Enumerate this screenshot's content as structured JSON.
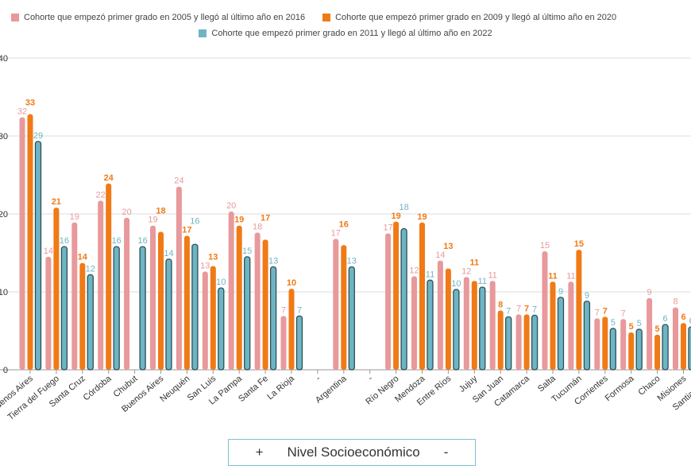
{
  "chart_data": {
    "type": "bar",
    "ylim": [
      0,
      40
    ],
    "yticks": [
      0,
      10,
      20,
      30,
      40
    ],
    "grid": true,
    "legend_position": "top",
    "categories": [
      "Buenos Aires",
      "Tierra del Fuego",
      "Santa Cruz",
      "Córdoba",
      "Chubut",
      "Buenos Aires",
      "Neuquén",
      "San Luis",
      "La Pampa",
      "Santa Fe",
      "La Rioja",
      "-",
      "Argentina",
      "-",
      "Río Negro",
      "Mendoza",
      "Entre Ríos",
      "Jujuy",
      "San Juan",
      "Catamarca",
      "Salta",
      "Tucumán",
      "Corrientes",
      "Formosa",
      "Chaco",
      "Misiones",
      "Santiago del"
    ],
    "series": [
      {
        "name": "Cohorte que empezó primer grado en 2005 y llegó al último año en 2016",
        "color": "#e8999b",
        "values": [
          32.4,
          14.5,
          18.9,
          21.7,
          19.5,
          18.5,
          23.5,
          12.6,
          20.3,
          17.6,
          6.9,
          null,
          16.8,
          null,
          17.5,
          12.0,
          14.0,
          11.9,
          11.4,
          7.1,
          15.2,
          11.3,
          6.6,
          6.5,
          9.2,
          8.0,
          null
        ],
        "labels": [
          "32",
          "14",
          "19",
          "22",
          "20",
          "19",
          "24",
          "13",
          "20",
          "18",
          "7",
          "",
          "17",
          "",
          "17",
          "12",
          "14",
          "12",
          "11",
          "7",
          "15",
          "11",
          "7",
          "7",
          "9",
          "8",
          ""
        ]
      },
      {
        "name": "Cohorte que empezó primer grado en 2009 y llegó al último año en 2020",
        "color": "#f07a16",
        "values": [
          32.8,
          20.8,
          13.7,
          23.9,
          null,
          17.7,
          17.2,
          13.3,
          18.5,
          16.7,
          10.4,
          null,
          16.0,
          null,
          19.0,
          18.9,
          13.0,
          11.4,
          7.6,
          7.1,
          11.3,
          15.4,
          6.8,
          4.8,
          4.5,
          6.0,
          null
        ],
        "labels": [
          "33",
          "21",
          "14",
          "24",
          "",
          "18",
          "17",
          "13",
          "19",
          "17",
          "10",
          "",
          "16",
          "",
          "19",
          "19",
          "13",
          "11",
          "8",
          "7",
          "11",
          "15",
          "7",
          "5",
          "5",
          "6",
          ""
        ]
      },
      {
        "name": "Cohorte que empezó primer grado en 2011 y llegó al último año en 2022",
        "color": "#6db5c4",
        "values": [
          29.3,
          15.8,
          12.2,
          15.8,
          15.8,
          14.2,
          16.1,
          10.5,
          14.5,
          13.2,
          6.9,
          null,
          13.2,
          null,
          18.1,
          11.5,
          10.3,
          10.6,
          6.8,
          7.0,
          9.3,
          8.8,
          5.3,
          5.2,
          5.8,
          5.5,
          null
        ],
        "labels": [
          "29",
          "16",
          "12",
          "16",
          "16",
          "14",
          "16",
          "10",
          "15",
          "13",
          "7",
          "",
          "13",
          "",
          "18",
          "11",
          "10",
          "11",
          "7",
          "7",
          "9",
          "9",
          "5",
          "5",
          "6",
          "6",
          ""
        ]
      }
    ]
  },
  "footer": {
    "plus": "+",
    "label": "Nivel Socioeconómico",
    "minus": "-"
  }
}
